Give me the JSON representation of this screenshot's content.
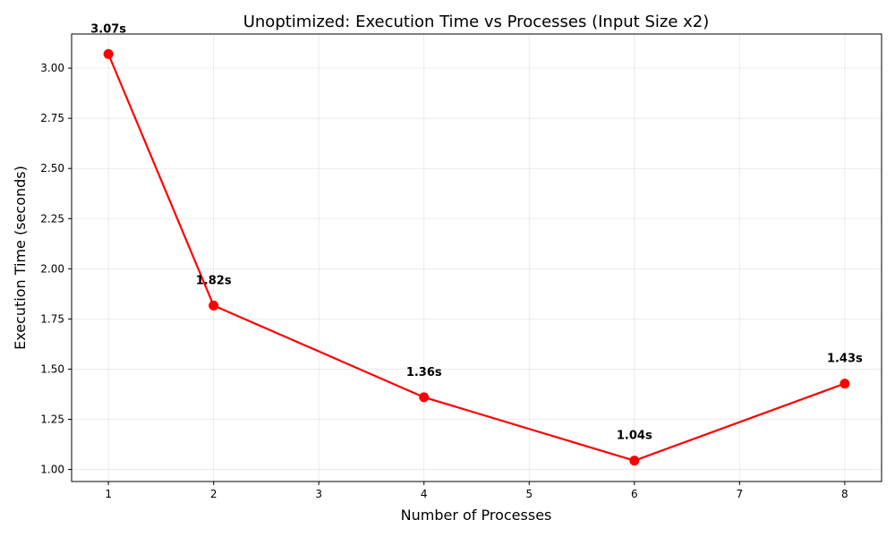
{
  "chart_data": {
    "type": "line",
    "title": "Unoptimized: Execution Time vs Processes (Input Size x2)",
    "xlabel": "Number of Processes",
    "ylabel": "Execution Time (seconds)",
    "x": [
      1,
      2,
      4,
      6,
      8
    ],
    "series": [
      {
        "values": [
          3.07,
          1.817,
          1.36,
          1.044,
          1.428
        ],
        "color": "#ff0000",
        "marker": "circle"
      }
    ],
    "data_labels": [
      "3.07s",
      "1.82s",
      "1.36s",
      "1.04s",
      "1.43s"
    ],
    "xlim": [
      0.65,
      8.35
    ],
    "ylim": [
      0.94,
      3.17
    ],
    "xticks": [
      1,
      2,
      3,
      4,
      5,
      6,
      7,
      8
    ],
    "xtick_labels": [
      "1",
      "2",
      "3",
      "4",
      "5",
      "6",
      "7",
      "8"
    ],
    "yticks": [
      1.0,
      1.25,
      1.5,
      1.75,
      2.0,
      2.25,
      2.5,
      2.75,
      3.0
    ],
    "ytick_labels": [
      "1.00",
      "1.25",
      "1.50",
      "1.75",
      "2.00",
      "2.25",
      "2.50",
      "2.75",
      "3.00"
    ],
    "grid": true
  }
}
